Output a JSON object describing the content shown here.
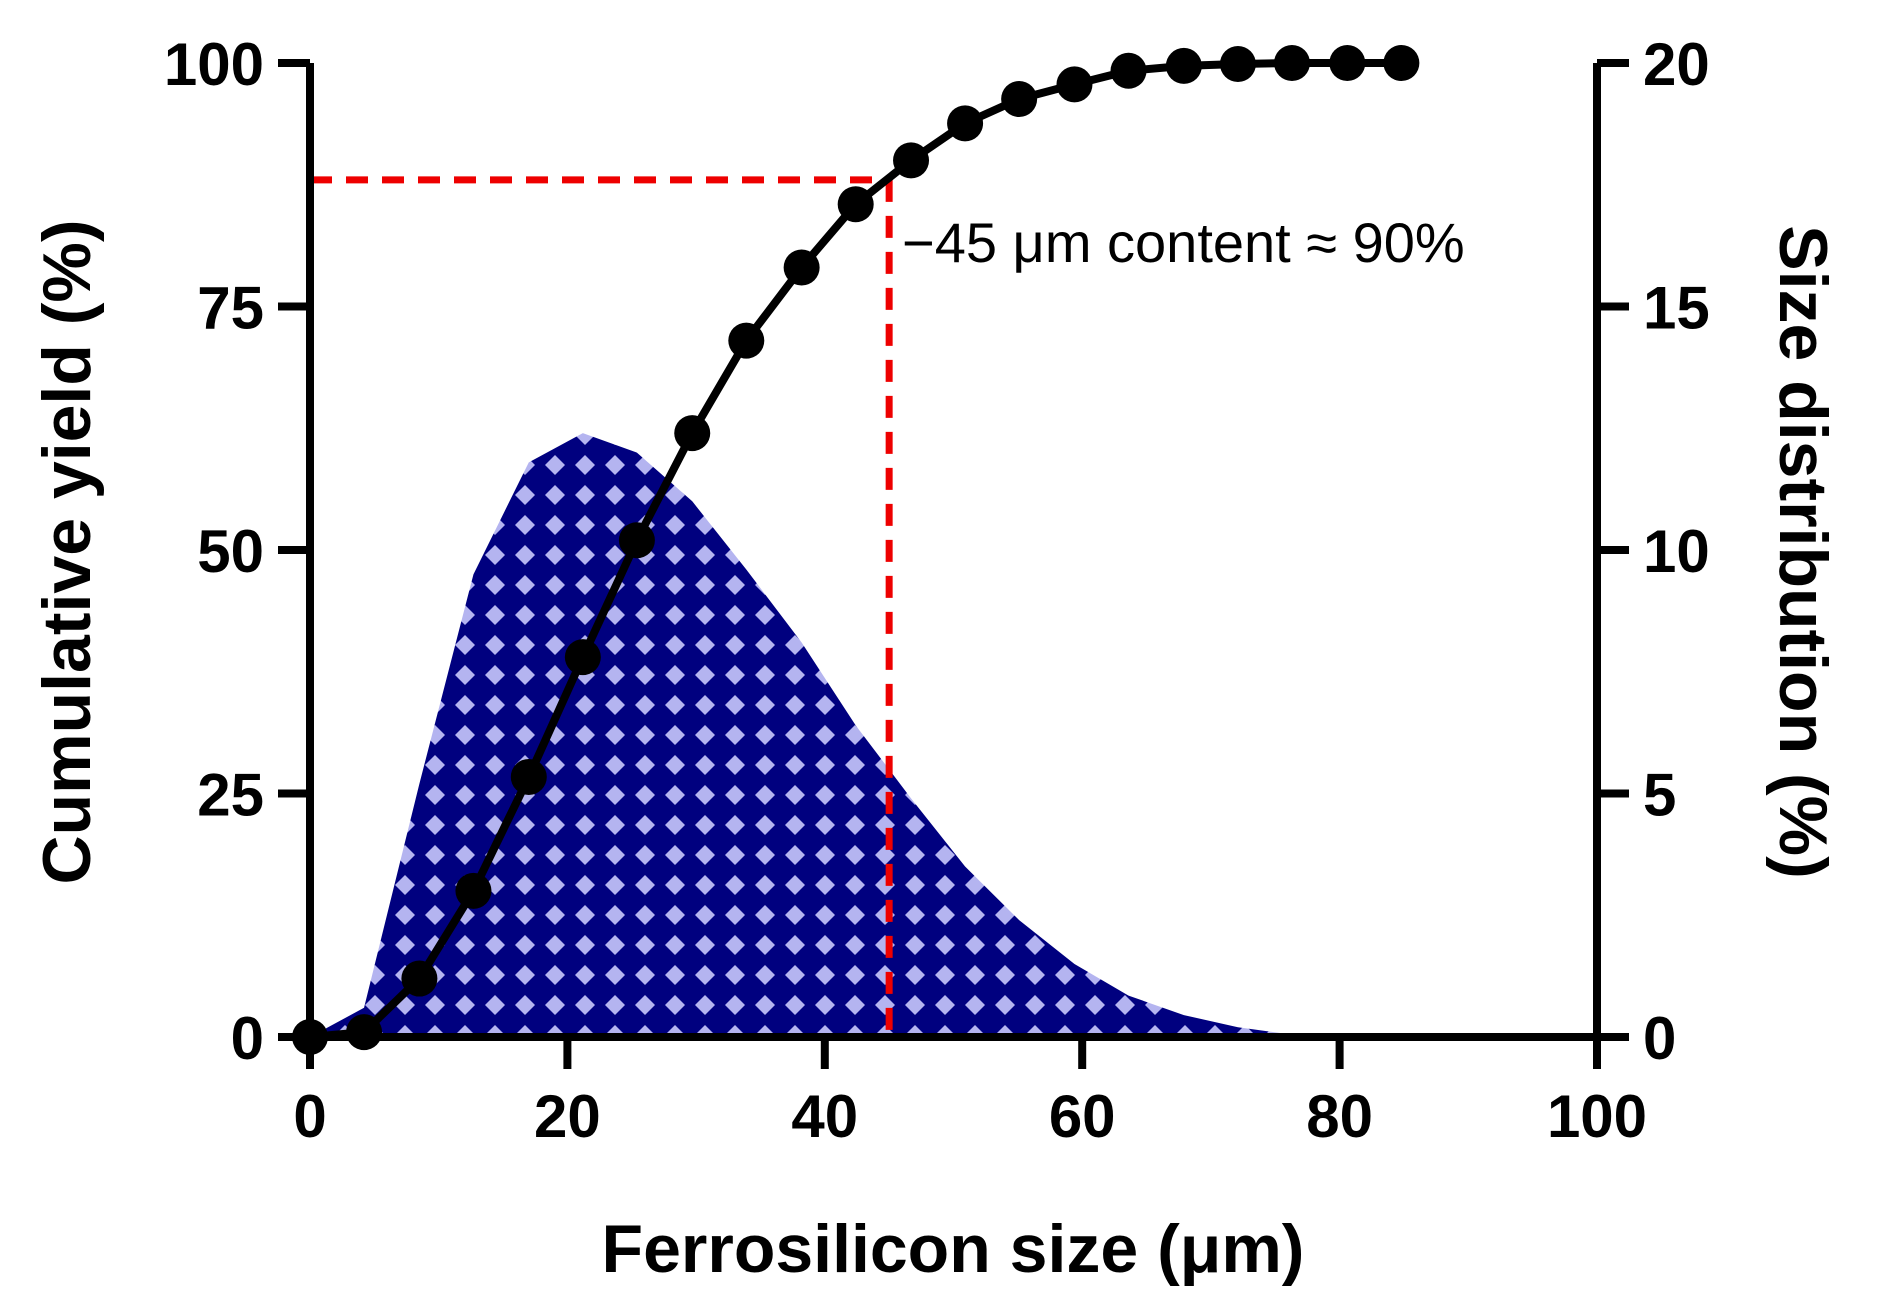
{
  "chart_data": {
    "type": "line",
    "title": "",
    "xlabel": "Ferrosilicon size (μm)",
    "ylabel_left": "Cumulative yield (%)",
    "ylabel_right": "Size distribution (%)",
    "xlim": [
      0,
      100
    ],
    "ylim_left": [
      0,
      100
    ],
    "ylim_right": [
      0,
      20
    ],
    "x_ticks": [
      "0",
      "20",
      "40",
      "60",
      "80",
      "100"
    ],
    "y_left_ticks": [
      "0",
      "25",
      "50",
      "75",
      "100"
    ],
    "y_right_ticks": [
      "0",
      "5",
      "10",
      "15",
      "20"
    ],
    "grid": false,
    "series": [
      {
        "name": "Cumulative yield",
        "axis": "left",
        "style": "line-with-markers",
        "color": "#000000",
        "x": [
          0,
          4.2,
          8.5,
          12.7,
          17.0,
          21.2,
          25.4,
          29.7,
          33.9,
          38.2,
          42.4,
          46.7,
          50.9,
          55.1,
          59.4,
          63.6,
          67.9,
          72.1,
          76.3,
          80.6,
          84.8
        ],
        "y": [
          0,
          0.5,
          6,
          15,
          26.7,
          39,
          51,
          62,
          71.5,
          79,
          85.5,
          90,
          93.8,
          96.3,
          97.8,
          99.2,
          99.7,
          99.9,
          100,
          100,
          100
        ]
      },
      {
        "name": "Size distribution",
        "axis": "right",
        "style": "area-crosshatch",
        "color": "#00007f",
        "pattern_color": "#b4b4f0",
        "x": [
          0,
          4.2,
          8.5,
          12.7,
          17.0,
          21.2,
          25.4,
          29.7,
          33.9,
          38.2,
          42.4,
          46.7,
          50.9,
          55.1,
          59.4,
          63.6,
          67.9,
          72.1,
          76.3,
          80.6,
          84.8
        ],
        "y": [
          0,
          0.6,
          5.2,
          9.5,
          11.8,
          12.4,
          12.0,
          11.0,
          9.6,
          8.1,
          6.4,
          4.9,
          3.5,
          2.4,
          1.5,
          0.85,
          0.45,
          0.2,
          0.05,
          0.01,
          0
        ]
      }
    ],
    "reference_lines": {
      "x": 45,
      "y": 88,
      "color": "#ee0000",
      "style": "dashed"
    },
    "annotation": "−45 μm content ≈ 90%"
  }
}
